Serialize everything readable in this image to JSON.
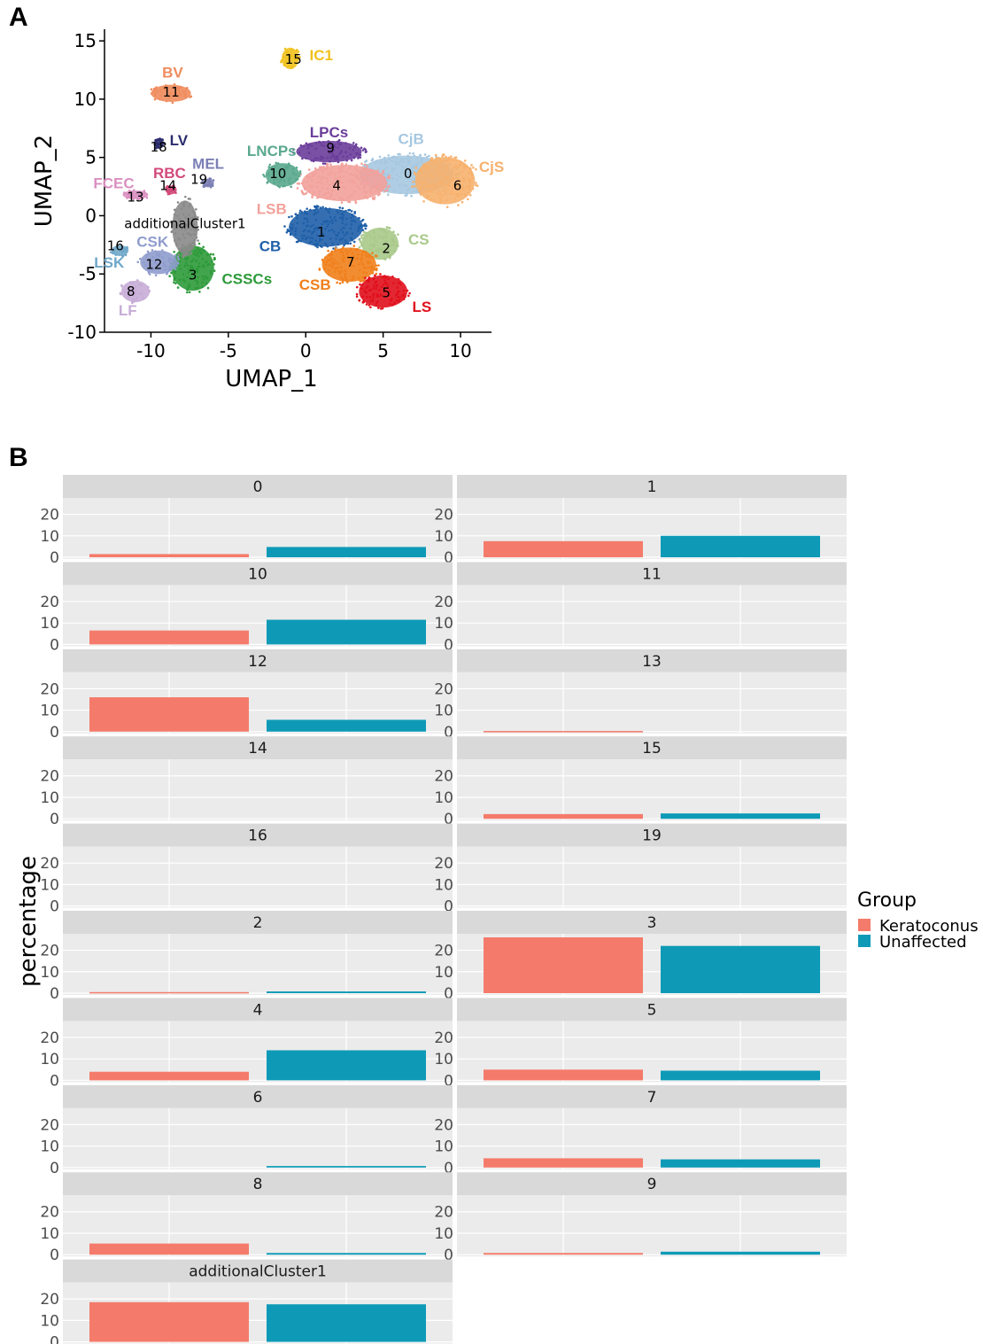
{
  "panel_a_label": "A",
  "panel_b_label": "B",
  "chart_data": [
    {
      "type": "scatter",
      "xlabel": "UMAP_1",
      "ylabel": "UMAP_2",
      "xlim": [
        -13,
        12
      ],
      "ylim": [
        -10,
        16
      ],
      "xticks": [
        -10,
        -5,
        0,
        5,
        10
      ],
      "yticks": [
        -10,
        -5,
        0,
        5,
        10,
        15
      ],
      "xtick_labels": [
        "-10",
        "-5",
        "0",
        "5",
        "10"
      ],
      "ytick_labels": [
        "-10",
        "-5",
        "0",
        "5",
        "10",
        "15"
      ],
      "clusters": [
        {
          "id": "0",
          "name": "CjB",
          "color": "#a6c8e0",
          "x": 6.5,
          "y": 3.5,
          "rx": 3.3,
          "ry": 1.8
        },
        {
          "id": "6",
          "name": "CjS",
          "color": "#f7b16e",
          "x": 9.0,
          "y": 3.0,
          "rx": 2.1,
          "ry": 2.2
        },
        {
          "id": "4",
          "name": "LSB",
          "color": "#f2a19b",
          "x": 2.5,
          "y": 2.8,
          "rx": 3.0,
          "ry": 1.7
        },
        {
          "id": "9",
          "name": "LPCs",
          "color": "#6a3d9a",
          "x": 1.5,
          "y": 5.5,
          "rx": 2.3,
          "ry": 1.0
        },
        {
          "id": "10",
          "name": "LNCPs",
          "color": "#5aa88e",
          "x": -1.5,
          "y": 3.5,
          "rx": 1.2,
          "ry": 1.1
        },
        {
          "id": "1",
          "name": "CB",
          "color": "#1f5fa8",
          "x": 1.3,
          "y": -1.0,
          "rx": 2.6,
          "ry": 1.8
        },
        {
          "id": "2",
          "name": "CS",
          "color": "#a9c98a",
          "x": 4.8,
          "y": -2.4,
          "rx": 1.3,
          "ry": 1.5
        },
        {
          "id": "7",
          "name": "CSB",
          "color": "#f07f1b",
          "x": 2.8,
          "y": -4.2,
          "rx": 1.9,
          "ry": 1.6
        },
        {
          "id": "5",
          "name": "LS",
          "color": "#e0101c",
          "x": 5.0,
          "y": -6.5,
          "rx": 1.7,
          "ry": 1.5
        },
        {
          "id": "3",
          "name": "CSSCs",
          "color": "#2e9a3a",
          "x": -7.3,
          "y": -4.5,
          "rx": 1.5,
          "ry": 2.1
        },
        {
          "id": "12",
          "name": "CSK",
          "color": "#8f9ccd",
          "x": -9.5,
          "y": -4.0,
          "rx": 1.3,
          "ry": 1.1
        },
        {
          "id": "8",
          "name": "LF",
          "color": "#c7acd6",
          "x": -11.0,
          "y": -6.5,
          "rx": 1.0,
          "ry": 1.0
        },
        {
          "id": "16",
          "name": "LSK",
          "color": "#6fa7c9",
          "x": -12.0,
          "y": -3.0,
          "rx": 0.6,
          "ry": 0.5
        },
        {
          "id": "additionalCluster1",
          "name": "",
          "color": "#8a8a8a",
          "x": -7.8,
          "y": -1.0,
          "rx": 0.9,
          "ry": 2.5
        },
        {
          "id": "11",
          "name": "BV",
          "color": "#ef8c5d",
          "x": -8.7,
          "y": 10.5,
          "rx": 1.4,
          "ry": 0.8
        },
        {
          "id": "15",
          "name": "IC1",
          "color": "#f1c21c",
          "x": -1.0,
          "y": 13.5,
          "rx": 0.6,
          "ry": 1.0
        },
        {
          "id": "18",
          "name": "LV",
          "color": "#2b2c6e",
          "x": -9.5,
          "y": 6.2,
          "rx": 0.3,
          "ry": 0.5
        },
        {
          "id": "13",
          "name": "FCEC",
          "color": "#d98fc0",
          "x": -11.0,
          "y": 1.8,
          "rx": 0.9,
          "ry": 0.4
        },
        {
          "id": "14",
          "name": "RBC",
          "color": "#d24a7a",
          "x": -8.7,
          "y": 2.2,
          "rx": 0.4,
          "ry": 0.4
        },
        {
          "id": "19",
          "name": "MEL",
          "color": "#7b7fb5",
          "x": -6.3,
          "y": 2.8,
          "rx": 0.4,
          "ry": 0.4
        }
      ],
      "cluster_numbers": [
        {
          "text": "15",
          "x": -0.8,
          "y": 13.4
        },
        {
          "text": "11",
          "x": -8.7,
          "y": 10.6
        },
        {
          "text": "18",
          "x": -9.5,
          "y": 5.9
        },
        {
          "text": "9",
          "x": 1.6,
          "y": 5.8
        },
        {
          "text": "10",
          "x": -1.8,
          "y": 3.6
        },
        {
          "text": "4",
          "x": 2.0,
          "y": 2.6
        },
        {
          "text": "0",
          "x": 6.6,
          "y": 3.6
        },
        {
          "text": "6",
          "x": 9.8,
          "y": 2.6
        },
        {
          "text": "19",
          "x": -6.9,
          "y": 3.1
        },
        {
          "text": "14",
          "x": -8.9,
          "y": 2.6
        },
        {
          "text": "13",
          "x": -11.0,
          "y": 1.6
        },
        {
          "text": "1",
          "x": 1.0,
          "y": -1.4
        },
        {
          "text": "2",
          "x": 5.2,
          "y": -2.8
        },
        {
          "text": "16",
          "x": -12.3,
          "y": -2.6
        },
        {
          "text": "12",
          "x": -9.8,
          "y": -4.2
        },
        {
          "text": "3",
          "x": -7.3,
          "y": -5.1
        },
        {
          "text": "7",
          "x": 2.9,
          "y": -4.0
        },
        {
          "text": "8",
          "x": -11.3,
          "y": -6.5
        },
        {
          "text": "5",
          "x": 5.2,
          "y": -6.6
        }
      ],
      "cell_type_labels": [
        {
          "text": "IC1",
          "x": 1.0,
          "y": 13.8,
          "color": "#f1c21c"
        },
        {
          "text": "BV",
          "x": -8.6,
          "y": 12.3,
          "color": "#ef8c5d"
        },
        {
          "text": "LV",
          "x": -8.2,
          "y": 6.5,
          "color": "#2b2c6e"
        },
        {
          "text": "LPCs",
          "x": 1.5,
          "y": 7.2,
          "color": "#6a3d9a"
        },
        {
          "text": "CjB",
          "x": 6.8,
          "y": 6.6,
          "color": "#a6c8e0"
        },
        {
          "text": "LNCPs",
          "x": -2.2,
          "y": 5.6,
          "color": "#5aa88e"
        },
        {
          "text": "CjS",
          "x": 12.0,
          "y": 4.2,
          "color": "#f7b16e"
        },
        {
          "text": "MEL",
          "x": -6.3,
          "y": 4.5,
          "color": "#7b7fb5"
        },
        {
          "text": "RBC",
          "x": -8.8,
          "y": 3.7,
          "color": "#d24a7a"
        },
        {
          "text": "FCEC",
          "x": -12.4,
          "y": 2.8,
          "color": "#d98fc0"
        },
        {
          "text": "LSB",
          "x": -2.2,
          "y": 0.6,
          "color": "#f2a19b"
        },
        {
          "text": "CS",
          "x": 7.3,
          "y": -2.0,
          "color": "#a9c98a"
        },
        {
          "text": "CB",
          "x": -2.3,
          "y": -2.6,
          "color": "#1f5fa8"
        },
        {
          "text": "CSK",
          "x": -9.9,
          "y": -2.2,
          "color": "#8f9ccd"
        },
        {
          "text": "LSK",
          "x": -12.7,
          "y": -4.0,
          "color": "#6fa7c9"
        },
        {
          "text": "CSSCs",
          "x": -3.8,
          "y": -5.4,
          "color": "#2e9a3a"
        },
        {
          "text": "CSB",
          "x": 0.6,
          "y": -5.9,
          "color": "#f07f1b"
        },
        {
          "text": "LS",
          "x": 7.5,
          "y": -7.8,
          "color": "#e0101c"
        },
        {
          "text": "LF",
          "x": -11.5,
          "y": -8.1,
          "color": "#c7acd6"
        },
        {
          "text": "additionalCluster1",
          "x": -7.8,
          "y": -0.6,
          "color": "#000000"
        }
      ]
    },
    {
      "type": "bar",
      "ylabel": "percentage",
      "ylim": [
        0,
        26
      ],
      "yticks": [
        0,
        10,
        20
      ],
      "ytick_labels": [
        "0",
        "10",
        "20"
      ],
      "legend": {
        "title": "Group",
        "placement": "right"
      },
      "series": [
        {
          "name": "Keratoconus",
          "color": "#f47b6b"
        },
        {
          "name": "Unaffected",
          "color": "#0e9ab7"
        }
      ],
      "facets": [
        {
          "label": "0",
          "values": [
            1.5,
            4.8
          ]
        },
        {
          "label": "1",
          "values": [
            7.5,
            10.0
          ]
        },
        {
          "label": "10",
          "values": [
            6.5,
            11.5
          ]
        },
        {
          "label": "11",
          "values": [
            0,
            0
          ]
        },
        {
          "label": "12",
          "values": [
            16.0,
            5.5
          ]
        },
        {
          "label": "13",
          "values": [
            0.3,
            0
          ]
        },
        {
          "label": "14",
          "values": [
            0,
            0
          ]
        },
        {
          "label": "15",
          "values": [
            2.2,
            2.5
          ]
        },
        {
          "label": "16",
          "values": [
            0,
            0
          ]
        },
        {
          "label": "19",
          "values": [
            0,
            0
          ]
        },
        {
          "label": "2",
          "values": [
            0.5,
            0.8
          ]
        },
        {
          "label": "3",
          "values": [
            26.0,
            22.0
          ]
        },
        {
          "label": "4",
          "values": [
            4.0,
            14.0
          ]
        },
        {
          "label": "5",
          "values": [
            5.0,
            4.5
          ]
        },
        {
          "label": "6",
          "values": [
            0,
            0.7
          ]
        },
        {
          "label": "7",
          "values": [
            4.3,
            3.8
          ]
        },
        {
          "label": "8",
          "values": [
            5.2,
            0.8
          ]
        },
        {
          "label": "9",
          "values": [
            0.8,
            1.4
          ]
        },
        {
          "label": "additionalCluster1",
          "values": [
            18.5,
            17.5
          ]
        }
      ]
    }
  ]
}
